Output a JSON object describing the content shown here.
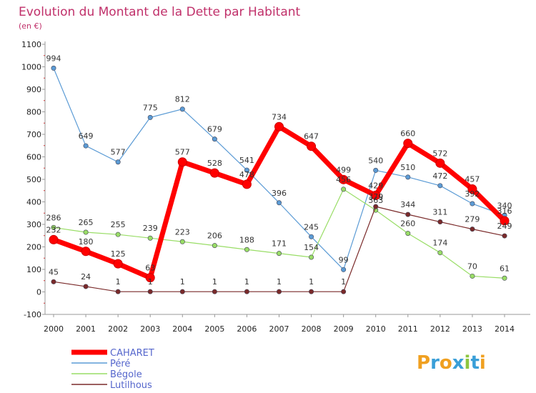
{
  "chart_data": {
    "type": "line",
    "title": "Evolution du Montant de la Dette par Habitant",
    "unit_label": "(en €)",
    "x": [
      "2000",
      "2001",
      "2002",
      "2003",
      "2004",
      "2005",
      "2006",
      "2007",
      "2008",
      "2009",
      "2010",
      "2011",
      "2012",
      "2013",
      "2014"
    ],
    "ylim": [
      -100,
      1100
    ],
    "yticks": [
      -100,
      0,
      100,
      200,
      300,
      400,
      500,
      600,
      700,
      800,
      900,
      1000,
      1100
    ],
    "grid": false,
    "legend_placement": "bottom-left",
    "series": [
      {
        "name": "CAHARET",
        "color": "#ff0000",
        "values": [
          232,
          180,
          125,
          63,
          577,
          528,
          478,
          734,
          647,
          499,
          429,
          660,
          572,
          457,
          316
        ]
      },
      {
        "name": "Péré",
        "color": "#5b9bd5",
        "values": [
          994,
          649,
          577,
          775,
          812,
          679,
          541,
          396,
          245,
          99,
          540,
          510,
          472,
          392,
          340
        ]
      },
      {
        "name": "Bégole",
        "color": "#99dd66",
        "values": [
          286,
          265,
          255,
          239,
          223,
          206,
          188,
          171,
          154,
          456,
          363,
          260,
          174,
          70,
          61
        ]
      },
      {
        "name": "Lutilhous",
        "color": "#7a2a2a",
        "values": [
          45,
          24,
          1,
          1,
          1,
          1,
          1,
          1,
          1,
          1,
          379,
          344,
          311,
          279,
          249
        ]
      }
    ]
  },
  "logo_text": "Proxiti"
}
